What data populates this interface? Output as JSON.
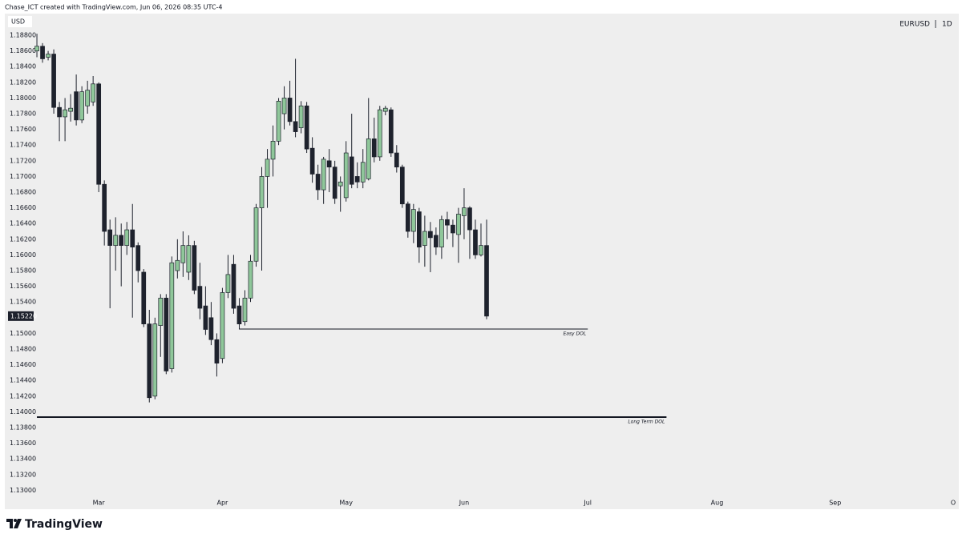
{
  "header": "Chase_ICT created with TradingView.com, Jun 06, 2026 08:35 UTC-4",
  "brand": "TradingView",
  "chart_data": {
    "type": "candlestick",
    "symbol": "EURUSD",
    "interval": "1D",
    "currency": "USD",
    "up_color": "#8fc79a",
    "down_color": "#1e222d",
    "open": [
      1.186,
      1.1866,
      1.1852,
      1.1856,
      1.1788,
      1.1776,
      1.1783,
      1.1808,
      1.1772,
      1.179,
      1.1795,
      1.1818,
      1.169,
      1.1632,
      1.1612,
      1.1625,
      1.1612,
      1.1632,
      1.1612,
      1.1578,
      1.1512,
      1.142,
      1.151,
      1.1545,
      1.1455,
      1.158,
      1.159,
      1.1578,
      1.1612,
      1.156,
      1.1535,
      1.152,
      1.1492,
      1.1468,
      1.1552,
      1.1588,
      1.1535,
      1.1515,
      1.1545,
      1.1592,
      1.166,
      1.17,
      1.1722,
      1.1745,
      1.178,
      1.18,
      1.177,
      1.1762,
      1.179,
      1.1736,
      1.1703,
      1.1683,
      1.172,
      1.1712,
      1.1688,
      1.1673,
      1.1725,
      1.17,
      1.1693,
      1.1697,
      1.1748,
      1.1725,
      1.1783,
      1.1785,
      1.173,
      1.1712,
      1.1665,
      1.163,
      1.1655,
      1.1612,
      1.163,
      1.1625,
      1.161,
      1.1645,
      1.1638,
      1.1626,
      1.165,
      1.166,
      1.1632,
      1.16,
      1.1612
    ],
    "high": [
      1.1882,
      1.187,
      1.186,
      1.1862,
      1.1795,
      1.18,
      1.1805,
      1.183,
      1.1815,
      1.1822,
      1.1828,
      1.182,
      1.1695,
      1.1645,
      1.1648,
      1.164,
      1.1642,
      1.1665,
      1.1616,
      1.1582,
      1.153,
      1.152,
      1.155,
      1.155,
      1.1598,
      1.162,
      1.163,
      1.1625,
      1.1618,
      1.159,
      1.156,
      1.154,
      1.15,
      1.1558,
      1.16,
      1.16,
      1.1545,
      1.1555,
      1.16,
      1.1665,
      1.1712,
      1.1735,
      1.1765,
      1.18,
      1.1815,
      1.1822,
      1.185,
      1.1796,
      1.1795,
      1.175,
      1.1715,
      1.1725,
      1.1735,
      1.172,
      1.17,
      1.1745,
      1.178,
      1.1718,
      1.1735,
      1.18,
      1.1775,
      1.179,
      1.179,
      1.1788,
      1.174,
      1.1715,
      1.1668,
      1.1665,
      1.166,
      1.165,
      1.1642,
      1.1635,
      1.165,
      1.1655,
      1.1645,
      1.166,
      1.1685,
      1.1662,
      1.1645,
      1.164,
      1.1645
    ],
    "low": [
      1.1852,
      1.1845,
      1.1848,
      1.178,
      1.1745,
      1.1745,
      1.177,
      1.1765,
      1.1768,
      1.178,
      1.179,
      1.168,
      1.1612,
      1.1532,
      1.158,
      1.156,
      1.16,
      1.152,
      1.1565,
      1.1508,
      1.1412,
      1.1416,
      1.147,
      1.1448,
      1.145,
      1.157,
      1.1572,
      1.1568,
      1.155,
      1.1518,
      1.1498,
      1.1485,
      1.1445,
      1.1462,
      1.1545,
      1.1525,
      1.1505,
      1.151,
      1.154,
      1.1585,
      1.158,
      1.166,
      1.17,
      1.174,
      1.176,
      1.1765,
      1.175,
      1.1755,
      1.173,
      1.1692,
      1.167,
      1.1665,
      1.168,
      1.1665,
      1.1655,
      1.1668,
      1.1685,
      1.1685,
      1.1685,
      1.1695,
      1.1718,
      1.172,
      1.1778,
      1.1725,
      1.1705,
      1.166,
      1.1622,
      1.1615,
      1.159,
      1.1585,
      1.1578,
      1.16,
      1.1595,
      1.162,
      1.161,
      1.159,
      1.162,
      1.1595,
      1.1595,
      1.1598,
      1.1518
    ],
    "close": [
      1.1866,
      1.185,
      1.1856,
      1.1788,
      1.1776,
      1.1785,
      1.1787,
      1.1772,
      1.1808,
      1.181,
      1.1818,
      1.169,
      1.163,
      1.1612,
      1.1625,
      1.1612,
      1.1632,
      1.161,
      1.158,
      1.1512,
      1.1418,
      1.1512,
      1.1545,
      1.1452,
      1.159,
      1.1593,
      1.1612,
      1.1612,
      1.1555,
      1.1532,
      1.1505,
      1.1492,
      1.1462,
      1.1552,
      1.1575,
      1.1532,
      1.1512,
      1.1545,
      1.1592,
      1.166,
      1.17,
      1.1722,
      1.1745,
      1.1796,
      1.18,
      1.177,
      1.1757,
      1.179,
      1.1735,
      1.1703,
      1.1683,
      1.1722,
      1.1712,
      1.1672,
      1.1693,
      1.173,
      1.169,
      1.1693,
      1.1718,
      1.1748,
      1.1725,
      1.1785,
      1.1787,
      1.173,
      1.1712,
      1.1665,
      1.163,
      1.1658,
      1.161,
      1.163,
      1.1622,
      1.161,
      1.1645,
      1.1638,
      1.1628,
      1.1652,
      1.166,
      1.1632,
      1.16,
      1.1612,
      1.1522
    ],
    "last_price": {
      "value": 1.1522,
      "label": "1.15220"
    },
    "xlim": [
      -0.29,
      164
    ],
    "xticks": [
      {
        "value": 11,
        "label": "Mar"
      },
      {
        "value": 33,
        "label": "Apr"
      },
      {
        "value": 55,
        "label": "May"
      },
      {
        "value": 76,
        "label": "Jun"
      },
      {
        "value": 98,
        "label": "Jul"
      },
      {
        "value": 121,
        "label": "Aug"
      },
      {
        "value": 142,
        "label": "Sep"
      },
      {
        "value": 163,
        "label": "O"
      }
    ],
    "ylim": [
      1.12759,
      1.19076
    ],
    "yticks": [
      {
        "value": 1.188,
        "label": "1.18800"
      },
      {
        "value": 1.186,
        "label": "1.18600"
      },
      {
        "value": 1.184,
        "label": "1.18400"
      },
      {
        "value": 1.182,
        "label": "1.18200"
      },
      {
        "value": 1.18,
        "label": "1.18000"
      },
      {
        "value": 1.178,
        "label": "1.17800"
      },
      {
        "value": 1.176,
        "label": "1.17600"
      },
      {
        "value": 1.174,
        "label": "1.17400"
      },
      {
        "value": 1.172,
        "label": "1.17200"
      },
      {
        "value": 1.17,
        "label": "1.17000"
      },
      {
        "value": 1.168,
        "label": "1.16800"
      },
      {
        "value": 1.166,
        "label": "1.16600"
      },
      {
        "value": 1.164,
        "label": "1.16400"
      },
      {
        "value": 1.162,
        "label": "1.16200"
      },
      {
        "value": 1.16,
        "label": "1.16000"
      },
      {
        "value": 1.158,
        "label": "1.15800"
      },
      {
        "value": 1.156,
        "label": "1.15600"
      },
      {
        "value": 1.154,
        "label": "1.15400"
      },
      {
        "value": 1.15,
        "label": "1.15000"
      },
      {
        "value": 1.148,
        "label": "1.14800"
      },
      {
        "value": 1.146,
        "label": "1.14600"
      },
      {
        "value": 1.144,
        "label": "1.14400"
      },
      {
        "value": 1.142,
        "label": "1.14200"
      },
      {
        "value": 1.14,
        "label": "1.14000"
      },
      {
        "value": 1.138,
        "label": "1.13800"
      },
      {
        "value": 1.136,
        "label": "1.13600"
      },
      {
        "value": 1.134,
        "label": "1.13400"
      },
      {
        "value": 1.132,
        "label": "1.13200"
      },
      {
        "value": 1.13,
        "label": "1.13000"
      }
    ],
    "levels": [
      {
        "label": "Easy DOL",
        "value": 1.15055,
        "x_range": [
          36,
          98
        ],
        "width": 1
      },
      {
        "label": "Long Term DOL",
        "value": 1.13933,
        "x_range": [
          0,
          112
        ],
        "width": 2
      }
    ]
  }
}
